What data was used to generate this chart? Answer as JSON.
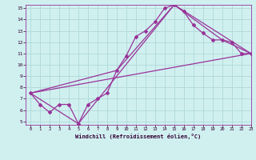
{
  "xlabel": "Windchill (Refroidissement éolien,°C)",
  "ylabel": "",
  "xlim": [
    -0.5,
    23
  ],
  "ylim": [
    4.7,
    15.3
  ],
  "xticks": [
    0,
    1,
    2,
    3,
    4,
    5,
    6,
    7,
    8,
    9,
    10,
    11,
    12,
    13,
    14,
    15,
    16,
    17,
    18,
    19,
    20,
    21,
    22,
    23
  ],
  "yticks": [
    5,
    6,
    7,
    8,
    9,
    10,
    11,
    12,
    13,
    14,
    15
  ],
  "bg_color": "#d0f0f0",
  "line_color": "#993399",
  "grid_color": "#b0d8d8",
  "line1_x": [
    0,
    1,
    2,
    3,
    4,
    5,
    6,
    7,
    8,
    9,
    10,
    11,
    12,
    13,
    14,
    15,
    16,
    17,
    18,
    19,
    20,
    21,
    22,
    23
  ],
  "line1_y": [
    7.5,
    6.5,
    5.8,
    6.5,
    6.5,
    4.8,
    6.5,
    7.0,
    7.5,
    9.5,
    10.8,
    12.5,
    13.0,
    13.8,
    15.0,
    15.3,
    14.7,
    13.5,
    12.8,
    12.2,
    12.2,
    12.0,
    11.0,
    11.0
  ],
  "line2_x": [
    0,
    23
  ],
  "line2_y": [
    7.5,
    11.0
  ],
  "line3_x": [
    0,
    5,
    15,
    20,
    23
  ],
  "line3_y": [
    7.5,
    4.8,
    15.3,
    12.2,
    11.0
  ],
  "line4_x": [
    0,
    9,
    15,
    23
  ],
  "line4_y": [
    7.5,
    9.5,
    15.3,
    11.0
  ]
}
